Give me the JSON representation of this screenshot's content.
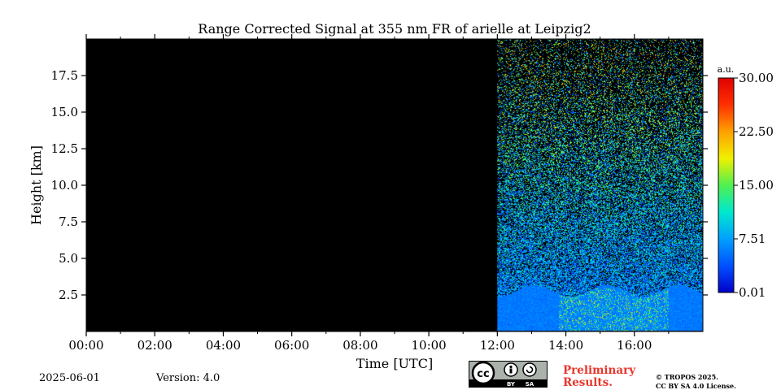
{
  "chart_data": {
    "type": "heatmap",
    "title": "Range Corrected Signal at 355 nm FR of arielle at Leipzig2",
    "xlabel": "Time [UTC]",
    "ylabel": "Height [km]",
    "x_range_hours": [
      0,
      18
    ],
    "x_ticks": [
      "00:00",
      "02:00",
      "04:00",
      "06:00",
      "08:00",
      "10:00",
      "12:00",
      "14:00",
      "16:00"
    ],
    "x_tick_hours": [
      0,
      2,
      4,
      6,
      8,
      10,
      12,
      14,
      16
    ],
    "ylim": [
      0,
      20
    ],
    "y_ticks": [
      "2.5",
      "5.0",
      "7.5",
      "10.0",
      "12.5",
      "15.0",
      "17.5"
    ],
    "y_tick_values": [
      2.5,
      5.0,
      7.5,
      10.0,
      12.5,
      15.0,
      17.5
    ],
    "no_data_interval_hours": [
      0,
      12
    ],
    "measurement_interval_hours": [
      12,
      18
    ],
    "features": {
      "boundary_layer_top_km": 2.8,
      "dense_aerosol_period_hours": [
        13.8,
        17.0
      ],
      "noise_increase_with_height": true
    },
    "colorbar": {
      "label": "a.u.",
      "min": 0.01,
      "max": 30.0,
      "ticks": [
        "0.01",
        "7.51",
        "15.00",
        "22.50",
        "30.00"
      ],
      "tick_values": [
        0.01,
        7.51,
        15.0,
        22.5,
        30.0
      ],
      "colormap": [
        "#0000c8",
        "#0050ff",
        "#00a0ff",
        "#00e8d0",
        "#50f050",
        "#f0f000",
        "#ffa000",
        "#ff3000",
        "#e00000"
      ]
    }
  },
  "footer": {
    "date": "2025-06-01",
    "version": "Version: 4.0",
    "license_badge": {
      "cc": "cc",
      "by": "BY",
      "sa": "SA"
    },
    "preliminary": "Preliminary Results.",
    "copyright_line1": "© TROPOS 2025.",
    "copyright_line2": "CC BY SA 4.0 License."
  }
}
